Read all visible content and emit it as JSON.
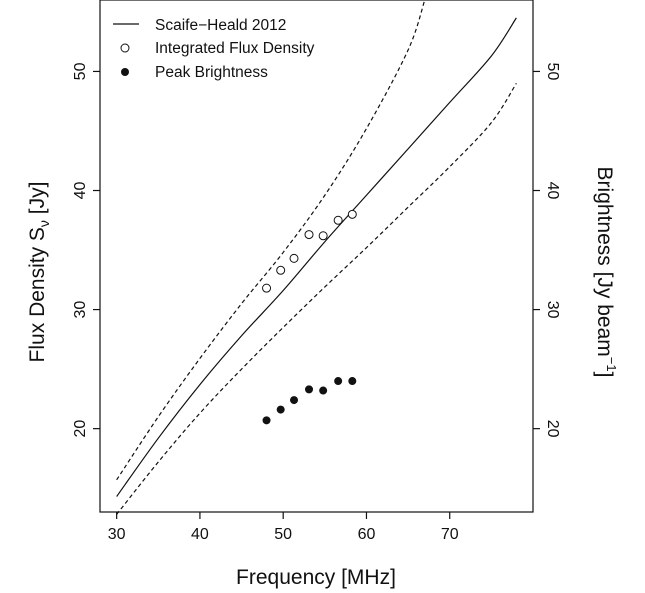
{
  "chart_data": {
    "type": "scatter",
    "xlabel": "Frequency [MHz]",
    "ylabel": {
      "main": "Flux Density S",
      "sub": "ν",
      "suffix": " [Jy]"
    },
    "y2label": {
      "main": "Brightness [Jy beam",
      "sup": "−1",
      "suffix": "]"
    },
    "xlim": [
      28,
      80
    ],
    "ylim": [
      13,
      56
    ],
    "xticks": [
      30,
      40,
      50,
      60,
      70
    ],
    "yticks": [
      20,
      30,
      40,
      50
    ],
    "grid": false,
    "legend_position": "top-left",
    "series": [
      {
        "name": "Scaife−Heald 2012",
        "kind": "line",
        "style": "solid",
        "x": [
          30,
          35,
          40,
          45,
          50,
          55,
          60,
          65,
          70,
          75,
          78
        ],
        "y": [
          14.3,
          19.2,
          23.7,
          27.8,
          31.6,
          35.7,
          39.6,
          43.5,
          47.4,
          51.3,
          54.5
        ]
      },
      {
        "kind": "line",
        "style": "dashed",
        "x": [
          30,
          35,
          40,
          45,
          50,
          55,
          60,
          65,
          67
        ],
        "y": [
          15.7,
          21.0,
          25.9,
          30.5,
          34.8,
          39.6,
          45.2,
          51.8,
          56.0
        ]
      },
      {
        "kind": "line",
        "style": "dashed",
        "x": [
          30,
          35,
          40,
          45,
          50,
          55,
          60,
          65,
          70,
          75,
          78
        ],
        "y": [
          12.8,
          17.2,
          21.3,
          25.0,
          28.5,
          31.9,
          35.2,
          38.6,
          42.0,
          45.7,
          49.0
        ]
      },
      {
        "name": "Integrated Flux Density",
        "kind": "scatter",
        "marker": "open-circle",
        "x": [
          48.0,
          49.7,
          51.3,
          53.1,
          54.8,
          56.6,
          58.3
        ],
        "y": [
          31.8,
          33.3,
          34.3,
          36.3,
          36.2,
          37.5,
          38.0
        ]
      },
      {
        "name": "Peak Brightness",
        "kind": "scatter",
        "marker": "filled-circle",
        "x": [
          48.0,
          49.7,
          51.3,
          53.1,
          54.8,
          56.6,
          58.3
        ],
        "y": [
          20.7,
          21.6,
          22.4,
          23.3,
          23.2,
          24.0,
          24.0
        ]
      }
    ]
  }
}
